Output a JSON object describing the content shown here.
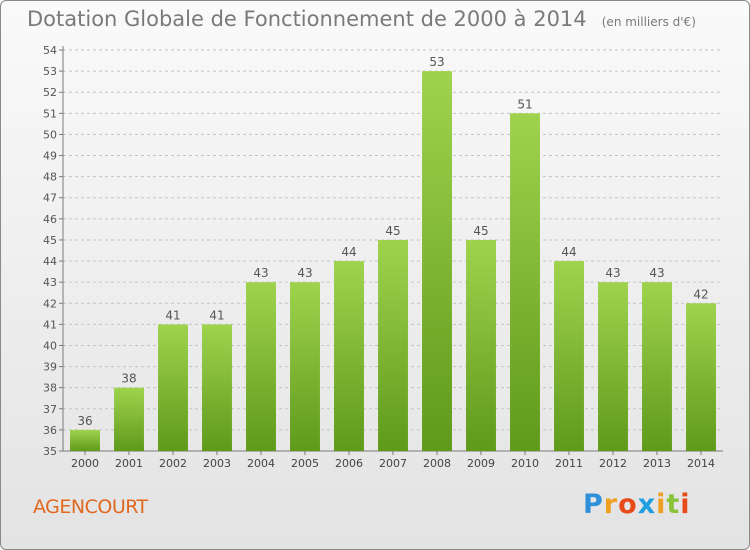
{
  "header": {
    "title": "Dotation Globale de Fonctionnement de 2000 à 2014",
    "subtitle": "(en milliers d'€)"
  },
  "footer": {
    "commune": "AGENCOURT",
    "logo": [
      "P",
      "r",
      "o",
      "x",
      "i",
      "t",
      "i"
    ]
  },
  "colors": {
    "bar_light": "#9fd34e",
    "bar_dark": "#5f9a1a",
    "title": "#7a7a7a",
    "commune": "#e06820"
  },
  "chart_data": {
    "type": "bar",
    "title": "Dotation Globale de Fonctionnement de 2000 à 2014",
    "subtitle": "(en milliers d'€)",
    "categories": [
      "2000",
      "2001",
      "2002",
      "2003",
      "2004",
      "2005",
      "2006",
      "2007",
      "2008",
      "2009",
      "2010",
      "2011",
      "2012",
      "2013",
      "2014"
    ],
    "values": [
      36,
      38,
      41,
      41,
      43,
      43,
      44,
      45,
      53,
      45,
      51,
      44,
      43,
      43,
      42
    ],
    "ylim": [
      35,
      54
    ],
    "yticks": [
      35,
      36,
      37,
      38,
      39,
      40,
      41,
      42,
      43,
      44,
      45,
      46,
      47,
      48,
      49,
      50,
      51,
      52,
      53,
      54
    ],
    "grid": true,
    "legend": "none",
    "data_labels": true
  }
}
